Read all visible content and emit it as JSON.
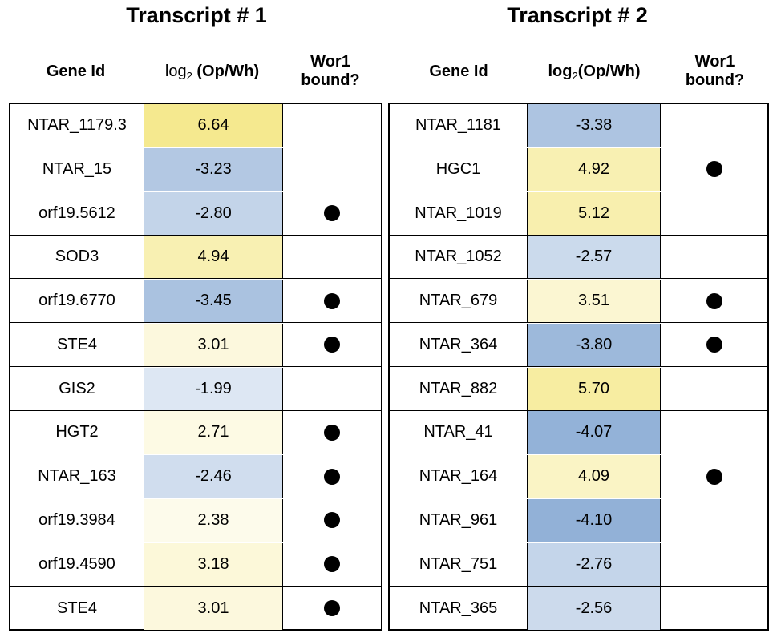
{
  "transcripts": [
    {
      "title": "Transcript # 1",
      "headers": {
        "gene": "Gene Id",
        "log_prefix": "log",
        "log_sub": "2",
        "log_suffix": " (Op/Wh)",
        "bound_line1": "Wor1",
        "bound_line2": "bound?"
      },
      "rows": [
        {
          "gene": "NTAR_1179.3",
          "value": "6.64",
          "bound": false
        },
        {
          "gene": "NTAR_15",
          "value": "-3.23",
          "bound": false
        },
        {
          "gene": "orf19.5612",
          "value": "-2.80",
          "bound": true
        },
        {
          "gene": "SOD3",
          "value": "4.94",
          "bound": false
        },
        {
          "gene": "orf19.6770",
          "value": "-3.45",
          "bound": true
        },
        {
          "gene": "STE4",
          "value": "3.01",
          "bound": true
        },
        {
          "gene": "GIS2",
          "value": "-1.99",
          "bound": false
        },
        {
          "gene": "HGT2",
          "value": "2.71",
          "bound": true
        },
        {
          "gene": "NTAR_163",
          "value": "-2.46",
          "bound": true
        },
        {
          "gene": "orf19.3984",
          "value": "2.38",
          "bound": true
        },
        {
          "gene": "orf19.4590",
          "value": "3.18",
          "bound": true
        },
        {
          "gene": "STE4",
          "value": "3.01",
          "bound": true
        }
      ]
    },
    {
      "title": "Transcript # 2",
      "headers": {
        "gene": "Gene Id",
        "log_prefix": "log",
        "log_sub": "2",
        "log_suffix": "(Op/Wh)",
        "bound_line1": "Wor1",
        "bound_line2": "bound?"
      },
      "rows": [
        {
          "gene": "NTAR_1181",
          "value": "-3.38",
          "bound": false
        },
        {
          "gene": "HGC1",
          "value": "4.92",
          "bound": true
        },
        {
          "gene": "NTAR_1019",
          "value": "5.12",
          "bound": false
        },
        {
          "gene": "NTAR_1052",
          "value": "-2.57",
          "bound": false
        },
        {
          "gene": "NTAR_679",
          "value": "3.51",
          "bound": true
        },
        {
          "gene": "NTAR_364",
          "value": "-3.80",
          "bound": true
        },
        {
          "gene": "NTAR_882",
          "value": "5.70",
          "bound": false
        },
        {
          "gene": "NTAR_41",
          "value": "-4.07",
          "bound": false
        },
        {
          "gene": "NTAR_164",
          "value": "4.09",
          "bound": true
        },
        {
          "gene": "NTAR_961",
          "value": "-4.10",
          "bound": false
        },
        {
          "gene": "NTAR_751",
          "value": "-2.76",
          "bound": false
        },
        {
          "gene": "NTAR_365",
          "value": "-2.56",
          "bound": false
        }
      ]
    }
  ],
  "chart_data": {
    "type": "table",
    "color_scale": {
      "positive": "#f5e98f",
      "negative": "#8eaed6",
      "neutral": "#ffffff"
    },
    "tables": [
      {
        "title": "Transcript # 1",
        "columns": [
          "Gene Id",
          "log2 (Op/Wh)",
          "Wor1 bound?"
        ],
        "genes": [
          "NTAR_1179.3",
          "NTAR_15",
          "orf19.5612",
          "SOD3",
          "orf19.6770",
          "STE4",
          "GIS2",
          "HGT2",
          "NTAR_163",
          "orf19.3984",
          "orf19.4590",
          "STE4"
        ],
        "log2_op_wh": [
          6.64,
          -3.23,
          -2.8,
          4.94,
          -3.45,
          3.01,
          -1.99,
          2.71,
          -2.46,
          2.38,
          3.18,
          3.01
        ],
        "wor1_bound": [
          false,
          false,
          true,
          false,
          true,
          true,
          false,
          true,
          true,
          true,
          true,
          true
        ]
      },
      {
        "title": "Transcript # 2",
        "columns": [
          "Gene Id",
          "log2(Op/Wh)",
          "Wor1 bound?"
        ],
        "genes": [
          "NTAR_1181",
          "HGC1",
          "NTAR_1019",
          "NTAR_1052",
          "NTAR_679",
          "NTAR_364",
          "NTAR_882",
          "NTAR_41",
          "NTAR_164",
          "NTAR_961",
          "NTAR_751",
          "NTAR_365"
        ],
        "log2_op_wh": [
          -3.38,
          4.92,
          5.12,
          -2.57,
          3.51,
          -3.8,
          5.7,
          -4.07,
          4.09,
          -4.1,
          -2.76,
          -2.56
        ],
        "wor1_bound": [
          false,
          true,
          false,
          false,
          true,
          true,
          false,
          false,
          true,
          false,
          false,
          false
        ]
      }
    ]
  }
}
